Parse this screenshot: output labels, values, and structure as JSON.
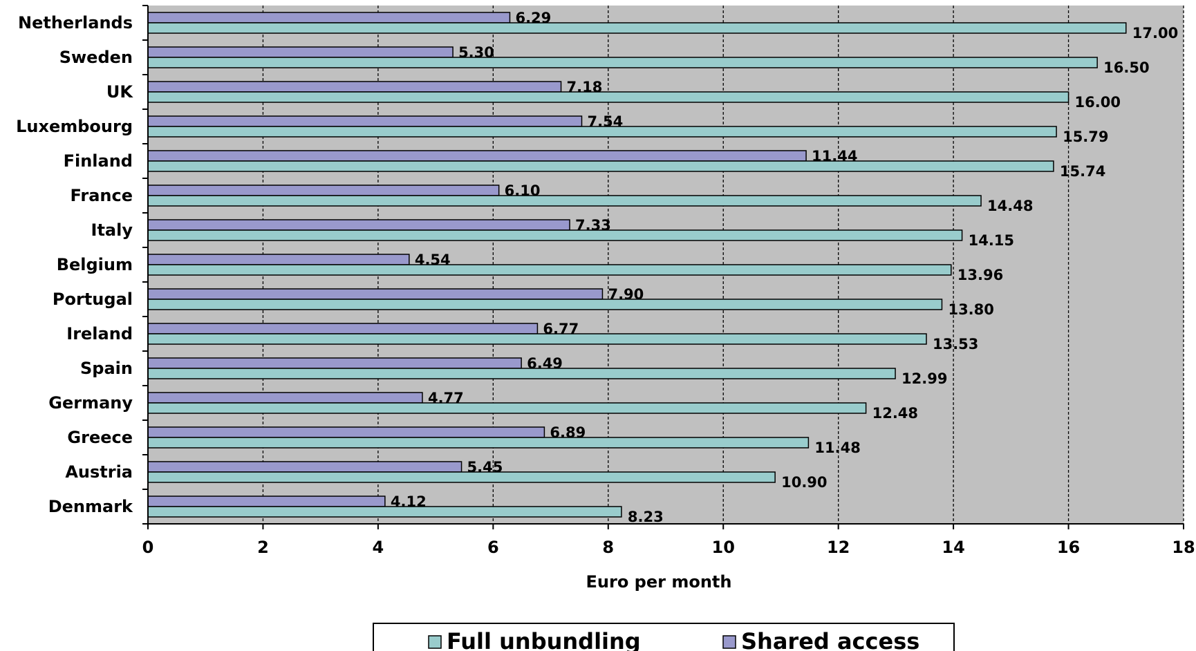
{
  "chart_data": {
    "type": "bar",
    "orientation": "horizontal",
    "categories": [
      "Netherlands",
      "Sweden",
      "UK",
      "Luxembourg",
      "Finland",
      "France",
      "Italy",
      "Belgium",
      "Portugal",
      "Ireland",
      "Spain",
      "Germany",
      "Greece",
      "Austria",
      "Denmark"
    ],
    "series": [
      {
        "name": "Full unbundling",
        "color": "#99CCCC",
        "values": [
          17.0,
          16.5,
          16.0,
          15.79,
          15.74,
          14.48,
          14.15,
          13.96,
          13.8,
          13.53,
          12.99,
          12.48,
          11.48,
          10.9,
          8.23
        ],
        "labels": [
          "17.00",
          "16.50",
          "16.00",
          "15.79",
          "15.74",
          "14.48",
          "14.15",
          "13.96",
          "13.80",
          "13.53",
          "12.99",
          "12.48",
          "11.48",
          "10.90",
          "8.23"
        ]
      },
      {
        "name": "Shared access",
        "color": "#9999CC",
        "values": [
          6.29,
          5.3,
          7.18,
          7.54,
          11.44,
          6.1,
          7.33,
          4.54,
          7.9,
          6.77,
          6.49,
          4.77,
          6.89,
          5.45,
          4.12
        ],
        "labels": [
          "6.29",
          "5.30",
          "7.18",
          "7.54",
          "11.44",
          "6.10",
          "7.33",
          "4.54",
          "7.90",
          "6.77",
          "6.49",
          "4.77",
          "6.89",
          "5.45",
          "4.12"
        ]
      }
    ],
    "xlabel": "Euro per month",
    "ylabel": "",
    "title": "",
    "xlim": [
      0,
      18
    ],
    "xticks": [
      "0",
      "2",
      "4",
      "6",
      "8",
      "10",
      "12",
      "14",
      "16",
      "18"
    ],
    "grid": "vertical dashed",
    "plot_background": "#C0C0C0",
    "legend_position": "bottom"
  }
}
